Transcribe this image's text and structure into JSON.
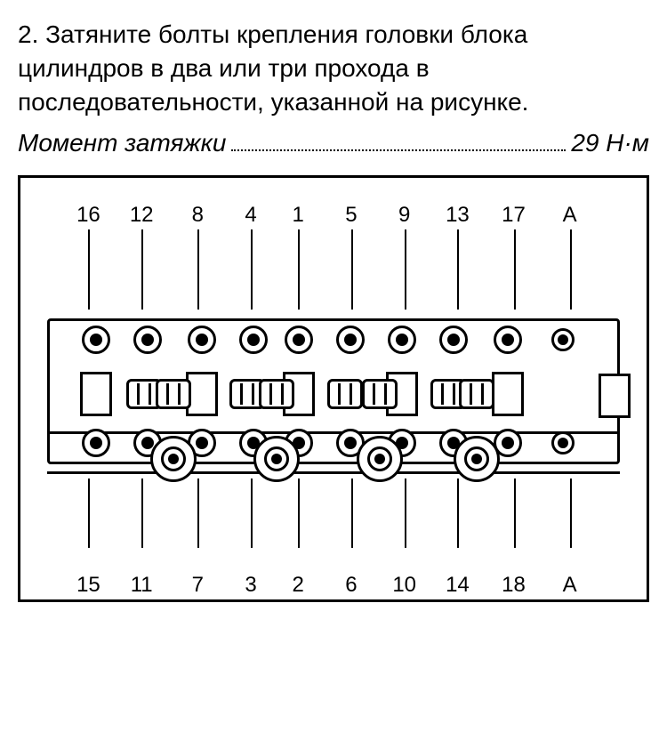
{
  "instruction": "2. Затяните болты крепления головки блока цилиндров в два или три прохода в последовательности, указанной на рисунке.",
  "torque": {
    "label": "Момент затяжки",
    "value": "29 Н·м"
  },
  "diagram": {
    "top_labels": [
      "16",
      "12",
      "8",
      "4",
      "1",
      "5",
      "9",
      "13",
      "17",
      "A"
    ],
    "bottom_labels": [
      "15",
      "11",
      "7",
      "3",
      "2",
      "6",
      "10",
      "14",
      "18",
      "A"
    ],
    "positions_pct": [
      8.5,
      17.5,
      27,
      36,
      44,
      53,
      62,
      71,
      80.5,
      90
    ],
    "lower_boss_pct": [
      22,
      40,
      58,
      75
    ],
    "cam_bearing_pct": [
      8.5,
      27,
      44,
      62,
      80.5
    ],
    "cam_lobe_pct": [
      17,
      22,
      35,
      40,
      52,
      58,
      70,
      75
    ],
    "colors": {
      "stroke": "#000000",
      "bg": "#ffffff"
    },
    "font_size_labels": 24
  }
}
